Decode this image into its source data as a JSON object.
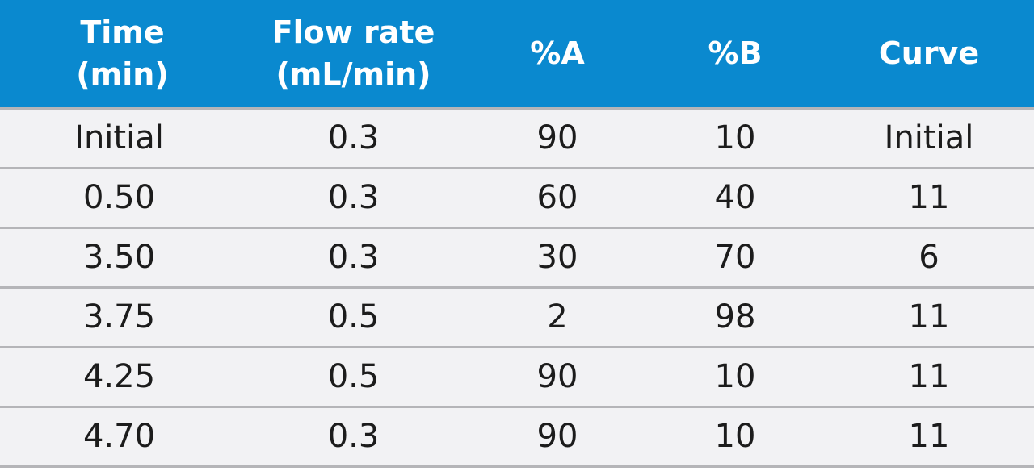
{
  "table": {
    "header": {
      "time": [
        "Time",
        "(min)"
      ],
      "flow": [
        "Flow rate",
        "(mL/min)"
      ],
      "a": "%A",
      "b": "%B",
      "curve": "Curve"
    },
    "rows": [
      {
        "time": "Initial",
        "flow": "0.3",
        "a": "90",
        "b": "10",
        "curve": "Initial"
      },
      {
        "time": "0.50",
        "flow": "0.3",
        "a": "60",
        "b": "40",
        "curve": "11"
      },
      {
        "time": "3.50",
        "flow": "0.3",
        "a": "30",
        "b": "70",
        "curve": "6"
      },
      {
        "time": "3.75",
        "flow": "0.5",
        "a": "2",
        "b": "98",
        "curve": "11"
      },
      {
        "time": "4.25",
        "flow": "0.5",
        "a": "90",
        "b": "10",
        "curve": "11"
      },
      {
        "time": "4.70",
        "flow": "0.3",
        "a": "90",
        "b": "10",
        "curve": "11"
      }
    ],
    "colors": {
      "header_bg": "#0a89cf",
      "header_text": "#ffffff",
      "row_bg": "#f2f2f4",
      "row_border": "#b5b5b8"
    }
  }
}
